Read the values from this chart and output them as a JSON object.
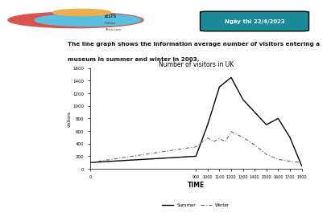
{
  "title": "Number of visitors in UK",
  "xlabel": "TIME",
  "ylabel": "visitors",
  "header_text1": "The line graph shows the information average number of visitors entering a",
  "header_text2": "museum in summer and winter in 2003.",
  "date_label": "Ngày thi 22/4/2023",
  "x_ticks": [
    0,
    900,
    1000,
    1100,
    1200,
    1300,
    1400,
    1500,
    1600,
    1700,
    1800
  ],
  "y_ticks": [
    0,
    200,
    400,
    600,
    800,
    1000,
    1200,
    1400,
    1600
  ],
  "summer": {
    "x": [
      0,
      900,
      1000,
      1100,
      1200,
      1300,
      1400,
      1500,
      1600,
      1700,
      1800
    ],
    "y": [
      100,
      200,
      700,
      1300,
      1450,
      1100,
      900,
      700,
      800,
      500,
      50
    ]
  },
  "winter": {
    "x": [
      0,
      900,
      1000,
      1050,
      1100,
      1150,
      1200,
      1300,
      1400,
      1500,
      1600,
      1700,
      1800
    ],
    "y": [
      100,
      350,
      490,
      430,
      480,
      430,
      590,
      500,
      380,
      230,
      150,
      120,
      100
    ]
  },
  "summer_color": "#000000",
  "winter_color": "#666666",
  "background_color": "#ffffff",
  "date_bg": "#1a8a9a",
  "date_text_color": "#ffffff",
  "ylim": [
    0,
    1600
  ],
  "xlim": [
    0,
    1800
  ],
  "logo_red": "#d9534f",
  "logo_blue": "#5bc0de",
  "logo_orange": "#f0ad4e"
}
